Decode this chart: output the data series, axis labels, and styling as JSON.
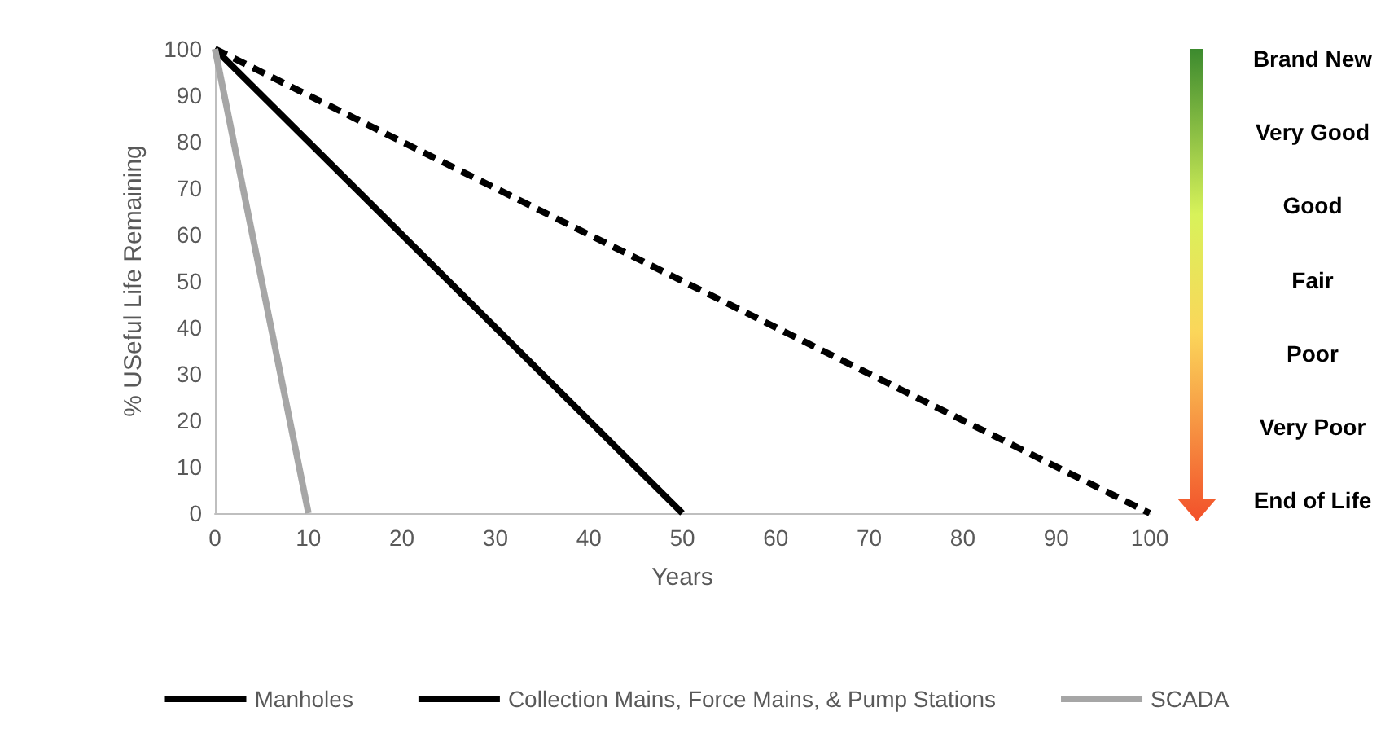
{
  "chart_data": {
    "type": "line",
    "xlabel": "Years",
    "ylabel": "% USeful Life Remaining",
    "xlim": [
      0,
      100
    ],
    "xticks": [
      0,
      10,
      20,
      30,
      40,
      50,
      60,
      70,
      80,
      90,
      100
    ],
    "ylim": [
      0,
      100
    ],
    "yticks": [
      0,
      10,
      20,
      30,
      40,
      50,
      60,
      70,
      80,
      90,
      100
    ],
    "grid": false,
    "legend": "bottom",
    "marker": "none",
    "series": [
      {
        "name": "Manholes",
        "color": "#000000",
        "line_style": "solid",
        "x": [
          0,
          50
        ],
        "values": [
          100,
          0
        ]
      },
      {
        "name": "Collection Mains, Force Mains, & Pump Stations",
        "color": "#000000",
        "line_style": "dashed",
        "x": [
          0,
          100
        ],
        "values": [
          100,
          0
        ]
      },
      {
        "name": "SCADA",
        "color": "#a6a6a6",
        "line_style": "solid",
        "x": [
          0,
          10
        ],
        "values": [
          100,
          0
        ]
      }
    ],
    "annotations": [
      "Brand New",
      "Very Good",
      "Good",
      "Fair",
      "Poor",
      "Very Poor",
      "End of Life"
    ]
  }
}
